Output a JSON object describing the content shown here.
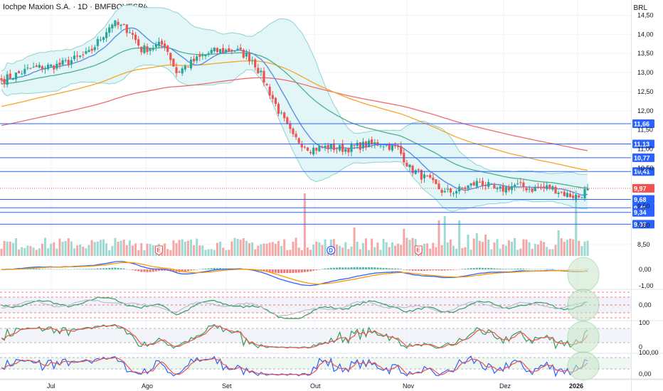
{
  "header": {
    "title": "Iochpe Maxion S.A. · 1D · BMFBOVESPA",
    "currency": "BRL"
  },
  "colors": {
    "up": "#26a69a",
    "down": "#ef5350",
    "level_line": "#2962ff",
    "ma_fast": "#5b8fe6",
    "ma_mid": "#4caf91",
    "ma_slow": "#f5a623",
    "ma_200": "#ef6b73",
    "band": "#8fd3cf",
    "band_fill": "#e3f6f7",
    "grid": "#f0f3fa"
  },
  "chart_data": {
    "type": "candlestick",
    "symbol": "Iochpe Maxion S.A.",
    "interval": "1D",
    "exchange": "BMFBOVESPA",
    "price_axis": {
      "range": [
        8.2,
        14.75
      ],
      "ticks": [
        "14,50",
        "14,00",
        "13,50",
        "13,00",
        "12,50",
        "12,00",
        "11,50",
        "11,00",
        "10,50",
        "9,50",
        "9,00",
        "8,50"
      ]
    },
    "x_axis": {
      "labels": [
        "Jul",
        "Ago",
        "Set",
        "Out",
        "Nov",
        "Dez",
        "2026"
      ]
    },
    "last_price": {
      "value": 9.97,
      "label": "9,97"
    },
    "levels": [
      {
        "value": 11.66,
        "label": "11,66"
      },
      {
        "value": 11.13,
        "label": "11,13"
      },
      {
        "value": 10.77,
        "label": "10,77"
      },
      {
        "value": 10.41,
        "label": "10,41"
      },
      {
        "value": 9.68,
        "label": "9,68"
      },
      {
        "value": 9.46,
        "label": "9,46"
      },
      {
        "value": 9.34,
        "label": "9,34"
      },
      {
        "value": 9.03,
        "label": "9,03"
      }
    ],
    "close_anchors": [
      {
        "bar": 0,
        "close": 12.8
      },
      {
        "bar": 10,
        "close": 13.1
      },
      {
        "bar": 20,
        "close": 13.2
      },
      {
        "bar": 30,
        "close": 13.5
      },
      {
        "bar": 38,
        "close": 14.3
      },
      {
        "bar": 44,
        "close": 14.1
      },
      {
        "bar": 48,
        "close": 13.6
      },
      {
        "bar": 56,
        "close": 13.75
      },
      {
        "bar": 60,
        "close": 13.0
      },
      {
        "bar": 66,
        "close": 13.3
      },
      {
        "bar": 72,
        "close": 13.55
      },
      {
        "bar": 80,
        "close": 13.6
      },
      {
        "bar": 86,
        "close": 13.35
      },
      {
        "bar": 90,
        "close": 12.8
      },
      {
        "bar": 95,
        "close": 12.0
      },
      {
        "bar": 100,
        "close": 11.3
      },
      {
        "bar": 106,
        "close": 11.0
      },
      {
        "bar": 112,
        "close": 11.05
      },
      {
        "bar": 118,
        "close": 11.0
      },
      {
        "bar": 124,
        "close": 11.1
      },
      {
        "bar": 130,
        "close": 11.15
      },
      {
        "bar": 136,
        "close": 11.0
      },
      {
        "bar": 140,
        "close": 10.5
      },
      {
        "bar": 146,
        "close": 10.2
      },
      {
        "bar": 152,
        "close": 9.85
      },
      {
        "bar": 158,
        "close": 9.95
      },
      {
        "bar": 164,
        "close": 10.15
      },
      {
        "bar": 170,
        "close": 9.9
      },
      {
        "bar": 176,
        "close": 10.05
      },
      {
        "bar": 182,
        "close": 9.95
      },
      {
        "bar": 188,
        "close": 10.0
      },
      {
        "bar": 194,
        "close": 9.8
      },
      {
        "bar": 198,
        "close": 9.75
      },
      {
        "bar": 201,
        "close": 9.97
      }
    ],
    "events": [
      {
        "label": "E",
        "type": "earnings",
        "bar": 54
      },
      {
        "label": "D",
        "type": "dividend",
        "bar": 113
      },
      {
        "label": "E",
        "type": "earnings",
        "bar": 143
      }
    ],
    "indicators": [
      {
        "name": "MACD",
        "ticks": [
          "0,00",
          "-1,00"
        ]
      },
      {
        "name": "Oscillator",
        "ticks": [
          "0,00"
        ]
      },
      {
        "name": "Stochastic",
        "ticks": [
          "100",
          "0"
        ]
      },
      {
        "name": "Stochastic RSI",
        "ticks": [
          "100,00",
          "0,00"
        ]
      }
    ]
  }
}
